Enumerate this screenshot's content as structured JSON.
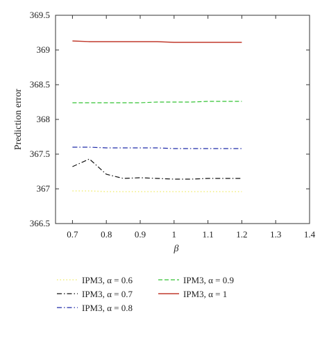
{
  "chart_data": {
    "type": "line",
    "xlabel": "β",
    "ylabel": "Prediction error",
    "xlim": [
      0.65,
      1.4
    ],
    "ylim": [
      366.5,
      369.5
    ],
    "xticks": [
      "0.7",
      "0.8",
      "0.9",
      "1",
      "1.1",
      "1.2",
      "1.3",
      "1.4"
    ],
    "yticks": [
      "366.5",
      "367",
      "367.5",
      "368",
      "368.5",
      "369",
      "369.5"
    ],
    "grid": false,
    "legend_placement": "below plot, two columns",
    "series": [
      {
        "name": "IPM3, α = 0.6",
        "color": "#f2ee7a",
        "style": "dotted",
        "x": [
          0.7,
          0.75,
          0.8,
          0.85,
          0.9,
          0.95,
          1.0,
          1.05,
          1.1,
          1.15,
          1.2
        ],
        "y": [
          366.97,
          366.97,
          366.96,
          366.96,
          366.96,
          366.96,
          366.96,
          366.96,
          366.96,
          366.96,
          366.96
        ]
      },
      {
        "name": "IPM3, α = 0.7",
        "color": "#111111",
        "style": "dashdot",
        "x": [
          0.7,
          0.75,
          0.8,
          0.85,
          0.9,
          0.95,
          1.0,
          1.05,
          1.1,
          1.15,
          1.2
        ],
        "y": [
          367.32,
          367.43,
          367.21,
          367.15,
          367.16,
          367.15,
          367.14,
          367.14,
          367.15,
          367.15,
          367.15
        ]
      },
      {
        "name": "IPM3, α = 0.8",
        "color": "#1f2aa8",
        "style": "dashdot",
        "x": [
          0.7,
          0.75,
          0.8,
          0.85,
          0.9,
          0.95,
          1.0,
          1.05,
          1.1,
          1.15,
          1.2
        ],
        "y": [
          367.6,
          367.6,
          367.59,
          367.59,
          367.59,
          367.59,
          367.58,
          367.58,
          367.58,
          367.58,
          367.58
        ]
      },
      {
        "name": "IPM3, α = 0.9",
        "color": "#33c233",
        "style": "dashed",
        "x": [
          0.7,
          0.75,
          0.8,
          0.85,
          0.9,
          0.95,
          1.0,
          1.05,
          1.1,
          1.15,
          1.2
        ],
        "y": [
          368.24,
          368.24,
          368.24,
          368.24,
          368.24,
          368.25,
          368.25,
          368.25,
          368.26,
          368.26,
          368.26
        ]
      },
      {
        "name": "IPM3, α = 1",
        "color": "#c0392b",
        "style": "solid",
        "x": [
          0.7,
          0.75,
          0.8,
          0.85,
          0.9,
          0.95,
          1.0,
          1.05,
          1.1,
          1.15,
          1.2
        ],
        "y": [
          369.13,
          369.12,
          369.12,
          369.12,
          369.12,
          369.12,
          369.11,
          369.11,
          369.11,
          369.11,
          369.11
        ]
      }
    ]
  }
}
